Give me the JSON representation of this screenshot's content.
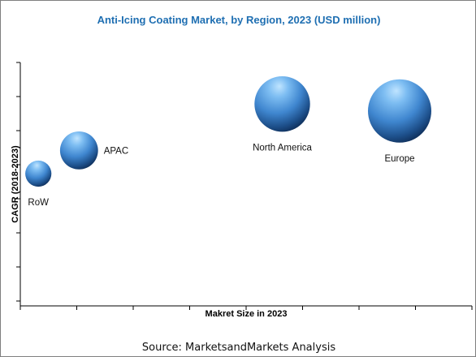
{
  "chart_data": {
    "type": "scatter",
    "subtype": "bubble",
    "title": "Anti-Icing Coating Market, by Region, 2023 (USD million)",
    "xlabel": "Makret Size in 2023",
    "ylabel": "CAGR (2018-2023)",
    "source": "Source: MarketsandMarkets Analysis",
    "axis_numbers_shown": false,
    "grid": false,
    "legend": "none",
    "bubble_color": "#4a90d9",
    "points": [
      {
        "label": "RoW",
        "x": 0.04,
        "y": 0.57,
        "size": 0.17,
        "label_position": "below"
      },
      {
        "label": "APAC",
        "x": 0.13,
        "y": 0.67,
        "size": 0.36,
        "label_position": "right"
      },
      {
        "label": "North America",
        "x": 0.58,
        "y": 0.87,
        "size": 0.77,
        "label_position": "below"
      },
      {
        "label": "Europe",
        "x": 0.84,
        "y": 0.84,
        "size": 1.0,
        "label_position": "below"
      }
    ]
  }
}
